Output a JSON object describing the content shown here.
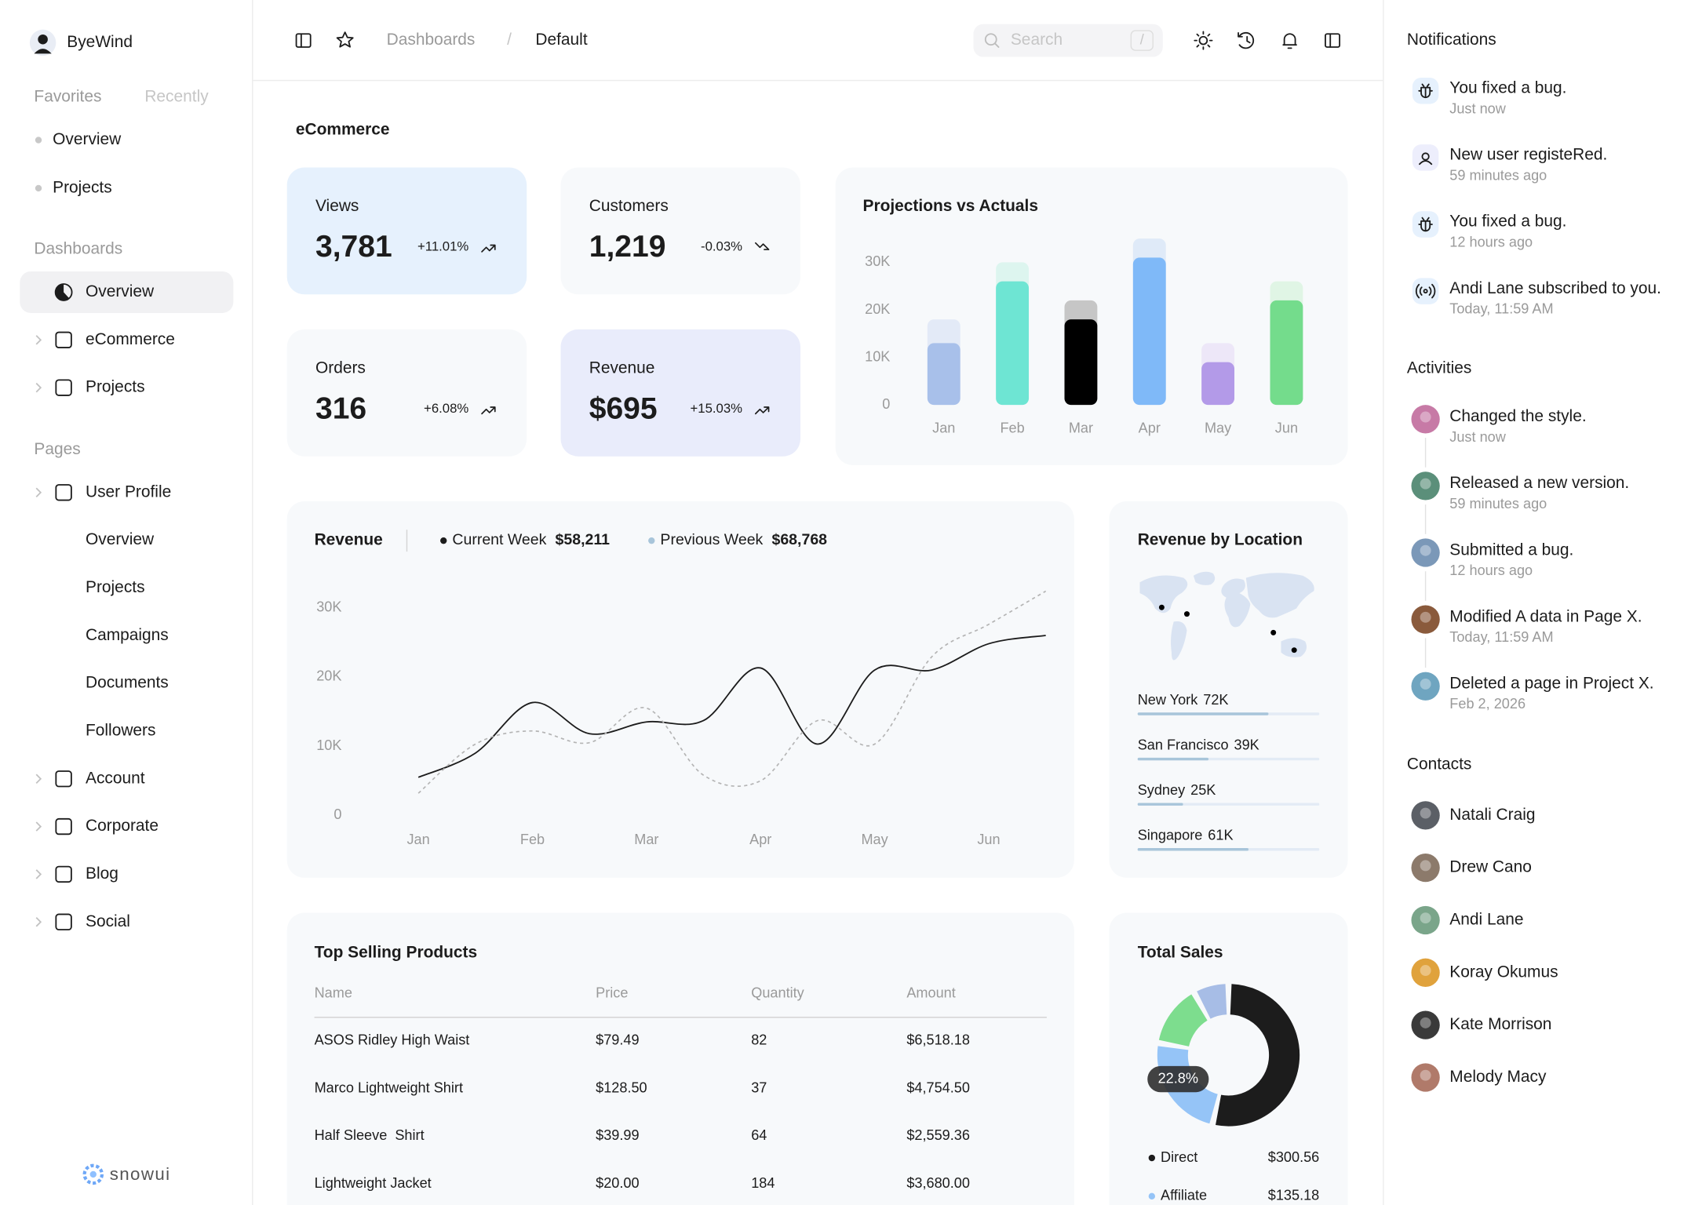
{
  "sidebar": {
    "user": "ByeWind",
    "tabs": [
      "Favorites",
      "Recently"
    ],
    "favorites": [
      "Overview",
      "Projects"
    ],
    "dashboards": {
      "title": "Dashboards",
      "items": [
        {
          "label": "Overview",
          "selected": true
        },
        {
          "label": "eCommerce"
        },
        {
          "label": "Projects"
        }
      ]
    },
    "pages": {
      "title": "Pages",
      "items": [
        {
          "label": "User Profile",
          "children": [
            "Overview",
            "Projects",
            "Campaigns",
            "Documents",
            "Followers"
          ]
        },
        {
          "label": "Account"
        },
        {
          "label": "Corporate"
        },
        {
          "label": "Blog"
        },
        {
          "label": "Social"
        }
      ]
    },
    "logo": "snowui"
  },
  "topbar": {
    "breadcrumb": [
      "Dashboards",
      "Default"
    ],
    "separator": "/",
    "search": "Search",
    "shortcut": "/"
  },
  "page_title": "eCommerce",
  "stats": [
    {
      "label": "Views",
      "value": "3,781",
      "change": "+11.01%"
    },
    {
      "label": "Customers",
      "value": "1,219",
      "change": "-0.03%"
    },
    {
      "label": "Orders",
      "value": "316",
      "change": "+6.08%"
    },
    {
      "label": "Revenue",
      "value": "$695",
      "change": "+15.03%"
    }
  ],
  "projections": {
    "type": "bar",
    "title": "Projections vs Actuals",
    "categories": [
      "Jan",
      "Feb",
      "Mar",
      "Apr",
      "May",
      "Jun"
    ],
    "actuals": [
      13000,
      26000,
      18000,
      31000,
      9000,
      22000
    ],
    "projections": [
      18000,
      30000,
      22000,
      35000,
      13000,
      26000
    ],
    "colors": [
      "#a8c0ea",
      "#6ee5d3",
      "#000000",
      "#7fb9f8",
      "#b39ae8",
      "#74dc8c"
    ],
    "projection_colors": [
      "#e3eaf7",
      "#ddf5ef",
      "#c6c6c6",
      "#dfeaf8",
      "#ede7f8",
      "#e0f5e5"
    ],
    "ylim": [
      0,
      35000
    ],
    "yticks": [
      0,
      {
        "value": 10000,
        "label": "10K"
      },
      {
        "value": 20000,
        "label": "20K"
      },
      {
        "value": 30000,
        "label": "30K"
      }
    ]
  },
  "revenue": {
    "type": "line",
    "title": "Revenue",
    "categories": [
      "Jan",
      null,
      "Feb",
      null,
      "Mar",
      null,
      "Apr",
      null,
      "May",
      null,
      "Jun",
      null
    ],
    "series": [
      {
        "name": "Current Week",
        "total": "$58,211",
        "color": "#1c1c1c",
        "line_color": "#1c1c1c",
        "dashed": false,
        "values": [
          5500,
          9000,
          16300,
          11800,
          13500,
          13700,
          21300,
          10300,
          21000,
          21000,
          24800,
          26000
        ]
      },
      {
        "name": "Previous Week",
        "total": "$68,768",
        "color": "#a8c5da",
        "line_color": "#b4b4b4",
        "dashed": true,
        "values": [
          3200,
          10300,
          12200,
          10500,
          15500,
          5800,
          5000,
          13700,
          10300,
          22900,
          27600,
          32400
        ]
      }
    ],
    "ylim": [
      0,
      34000
    ],
    "yticks": [
      0,
      {
        "value": 10000,
        "label": "10K"
      },
      {
        "value": 20000,
        "label": "20K"
      },
      {
        "value": 30000,
        "label": "30K"
      }
    ]
  },
  "locations": {
    "type": "bar",
    "title": "Revenue by Location",
    "categories": [
      "New York",
      "San Francisco",
      "Sydney",
      "Singapore"
    ],
    "values": [
      72000,
      39000,
      25000,
      61000
    ],
    "value_labels": [
      "72K",
      "39K",
      "25K",
      "61K"
    ],
    "xlim": [
      0,
      100000
    ],
    "color": "#a8c5da",
    "track_color": "#e3ebf5"
  },
  "products": {
    "title": "Top Selling Products",
    "columns": [
      "Name",
      "Price",
      "Quantity",
      "Amount"
    ],
    "rows": [
      [
        "ASOS Ridley High Waist",
        "$79.49",
        "82",
        "$6,518.18"
      ],
      [
        "Marco Lightweight Shirt",
        "$128.50",
        "37",
        "$4,754.50"
      ],
      [
        "Half Sleeve  Shirt",
        "$39.99",
        "64",
        "$2,559.36"
      ],
      [
        "Lightweight Jacket",
        "$20.00",
        "184",
        "$3,680.00"
      ]
    ]
  },
  "total_sales": {
    "type": "pie",
    "title": "Total Sales",
    "callout": "22.8%",
    "series": [
      {
        "name": "Direct",
        "value": 300.56,
        "value_label": "$300.56",
        "color": "#1c1c1c"
      },
      {
        "name": "Affiliate",
        "value": 135.18,
        "value_label": "$135.18",
        "color": "#95c4f7"
      },
      {
        "name": null,
        "value": 80,
        "color": "#7ddd8e"
      },
      {
        "name": null,
        "value": 45,
        "color": "#a7bde6"
      }
    ]
  },
  "notifications": {
    "title": "Notifications",
    "items": [
      {
        "text": "You fixed a bug.",
        "time": "Just now",
        "icon": "bug"
      },
      {
        "text": "New user registeRed.",
        "time": "59 minutes ago",
        "icon": "user"
      },
      {
        "text": "You fixed a bug.",
        "time": "12 hours ago",
        "icon": "bug"
      },
      {
        "text": "Andi Lane subscribed to you.",
        "time": "Today, 11:59 AM",
        "icon": "broadcast"
      }
    ]
  },
  "activities": {
    "title": "Activities",
    "items": [
      {
        "text": "Changed the style.",
        "time": "Just now",
        "color": "#c77aa6"
      },
      {
        "text": "Released a new version.",
        "time": "59 minutes ago",
        "color": "#5b8f7a"
      },
      {
        "text": "Submitted a bug.",
        "time": "12 hours ago",
        "color": "#7b98b8"
      },
      {
        "text": "Modified A data in Page X.",
        "time": "Today, 11:59 AM",
        "color": "#8a5a3c"
      },
      {
        "text": "Deleted a page in Project X.",
        "time": "Feb 2, 2026",
        "color": "#6fa5c0"
      }
    ]
  },
  "contacts": {
    "title": "Contacts",
    "items": [
      {
        "name": "Natali Craig",
        "color": "#5b5f66"
      },
      {
        "name": "Drew Cano",
        "color": "#8c7a6b"
      },
      {
        "name": "Andi Lane",
        "color": "#7aa58a"
      },
      {
        "name": "Koray Okumus",
        "color": "#e0a23c"
      },
      {
        "name": "Kate Morrison",
        "color": "#3a3a3a"
      },
      {
        "name": "Melody Macy",
        "color": "#b07a6a"
      }
    ]
  }
}
